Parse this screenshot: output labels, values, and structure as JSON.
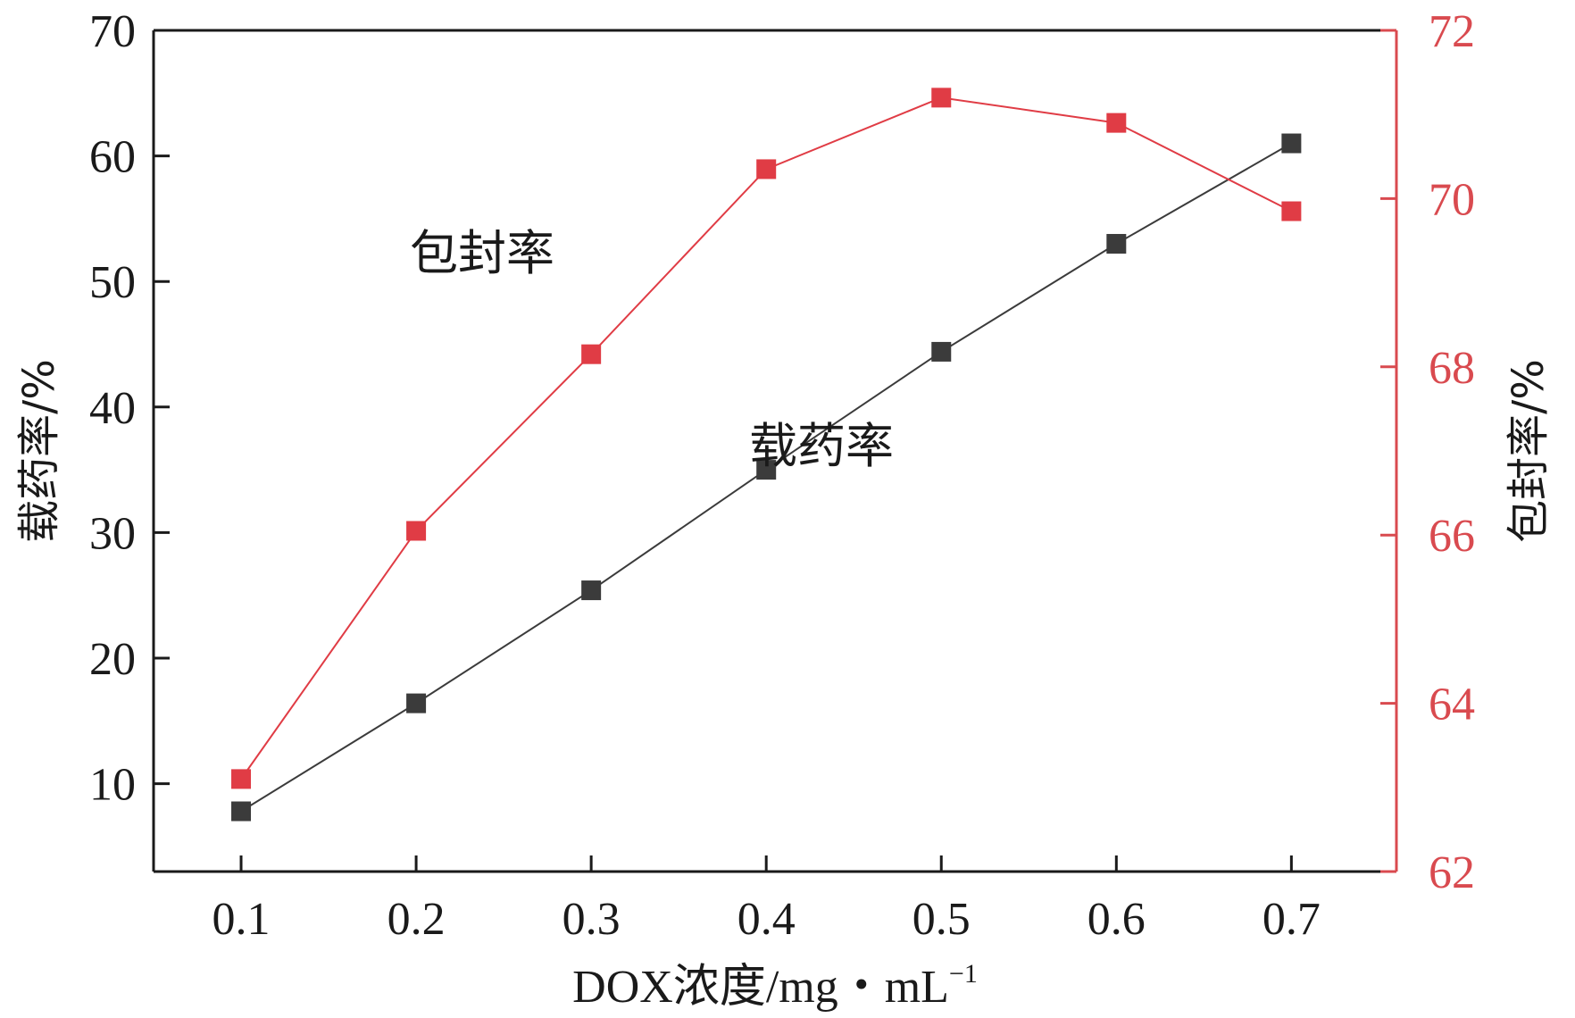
{
  "chart_data": {
    "type": "line",
    "x": [
      0.1,
      0.2,
      0.3,
      0.4,
      0.5,
      0.6,
      0.7
    ],
    "x_tick_labels": [
      "0.1",
      "0.2",
      "0.3",
      "0.4",
      "0.5",
      "0.6",
      "0.7"
    ],
    "xlim": [
      0.05,
      0.76
    ],
    "xlabel_main": "DOX浓度/mg・mL",
    "xlabel_sup": "−1",
    "ylabel_left": "载药率/%",
    "ylabel_right": "包封率/%",
    "ylim_left": [
      3,
      70
    ],
    "ylim_right": [
      62,
      72
    ],
    "y_left_ticks": [
      "10",
      "20",
      "30",
      "40",
      "50",
      "60",
      "70"
    ],
    "y_right_ticks": [
      "62",
      "64",
      "66",
      "68",
      "70",
      "72"
    ],
    "series": [
      {
        "name": "载药率",
        "axis": "left",
        "color": "#3b3b3b",
        "values": [
          7.8,
          16.4,
          25.4,
          35.0,
          44.4,
          53.0,
          61.0
        ]
      },
      {
        "name": "包封率",
        "axis": "right",
        "color": "#e03c45",
        "values": [
          63.1,
          66.05,
          68.15,
          70.35,
          71.2,
          70.9,
          69.85
        ]
      }
    ],
    "grid": false,
    "right_axis_color": "#d94a4f"
  }
}
